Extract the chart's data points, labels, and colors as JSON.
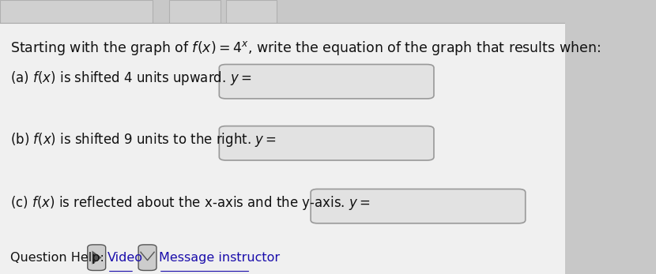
{
  "title_text": "Starting with the graph of $f(x) = 4^x$, write the equation of the graph that results when:",
  "line_a": "(a) $f(x)$ is shifted 4 units upward. $y =$",
  "line_b": "(b) $f(x)$ is shifted 9 units to the right. $y =$",
  "line_c": "(c) $f(x)$ is reflected about the x-axis and the y-axis. $y =$",
  "help_text_prefix": "Question Help: ",
  "help_video": "Video",
  "help_message": "Message instructor",
  "bg_color": "#c8c8c8",
  "main_bg": "#f0f0f0",
  "box_bg": "#e2e2e2",
  "box_border": "#999999",
  "text_color": "#111111",
  "link_color": "#1a0dab",
  "title_fontsize": 12.5,
  "body_fontsize": 12.0,
  "help_fontsize": 11.5
}
